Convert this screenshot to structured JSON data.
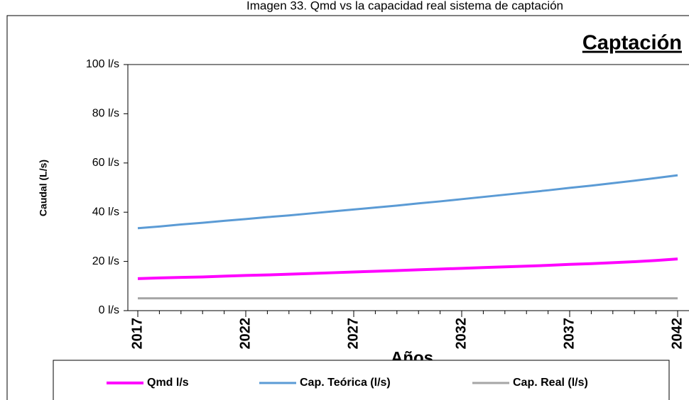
{
  "chart_data": {
    "type": "line",
    "title": "Imagen 33. Qmd vs la capacidad real sistema de captación",
    "subtitle": "Captación",
    "x_label": "Años",
    "y_label": "Caudal  (L/s)",
    "x": [
      2017,
      2018,
      2019,
      2020,
      2021,
      2022,
      2023,
      2024,
      2025,
      2026,
      2027,
      2028,
      2029,
      2030,
      2031,
      2032,
      2033,
      2034,
      2035,
      2036,
      2037,
      2038,
      2039,
      2040,
      2041,
      2042
    ],
    "series": [
      {
        "name": "Qmd l/s",
        "color": "#ff00ff",
        "values": [
          13.0,
          13.3,
          13.5,
          13.7,
          14.0,
          14.3,
          14.5,
          14.8,
          15.1,
          15.4,
          15.7,
          16.0,
          16.3,
          16.6,
          16.9,
          17.2,
          17.5,
          17.8,
          18.1,
          18.4,
          18.8,
          19.1,
          19.5,
          19.9,
          20.4,
          21.0
        ]
      },
      {
        "name": "Cap. Teórica (l/s)",
        "color": "#5b9bd5",
        "values": [
          33.5,
          34.2,
          35.0,
          35.7,
          36.5,
          37.2,
          38.0,
          38.7,
          39.5,
          40.3,
          41.1,
          41.9,
          42.7,
          43.6,
          44.4,
          45.3,
          46.2,
          47.1,
          48.0,
          48.9,
          49.9,
          50.8,
          51.8,
          52.8,
          53.9,
          55.0
        ]
      },
      {
        "name": "Cap. Real (l/s)",
        "color": "#a6a6a6",
        "values": [
          5,
          5,
          5,
          5,
          5,
          5,
          5,
          5,
          5,
          5,
          5,
          5,
          5,
          5,
          5,
          5,
          5,
          5,
          5,
          5,
          5,
          5,
          5,
          5,
          5,
          5
        ]
      }
    ],
    "xlim": [
      2017,
      2042
    ],
    "xticks": [
      2017,
      2022,
      2027,
      2032,
      2037,
      2042
    ],
    "ylim": [
      0,
      100
    ],
    "yticks": [
      {
        "value": 0,
        "label": "0 l/s"
      },
      {
        "value": 20,
        "label": "20 l/s"
      },
      {
        "value": 40,
        "label": "40 l/s"
      },
      {
        "value": 60,
        "label": "60 l/s"
      },
      {
        "value": 80,
        "label": "80 l/s"
      },
      {
        "value": 100,
        "label": "100 l/s"
      }
    ],
    "legend": "bottom"
  }
}
